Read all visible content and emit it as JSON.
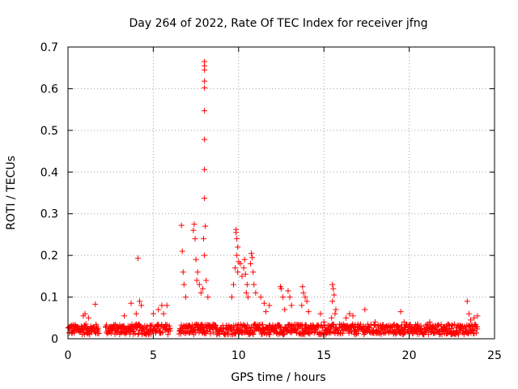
{
  "chart_data": {
    "type": "scatter",
    "title": "Day 264 of 2022, Rate Of TEC Index for receiver jfng",
    "xlabel": "GPS time / hours",
    "ylabel": "ROTI / TECUs",
    "xlim": [
      0,
      25
    ],
    "ylim": [
      0,
      0.7
    ],
    "xticks": [
      0,
      5,
      10,
      15,
      20,
      25
    ],
    "yticks": [
      0,
      0.1,
      0.2,
      0.3,
      0.4,
      0.5,
      0.6,
      0.7
    ],
    "xtick_labels": [
      "0",
      "5",
      "10",
      "15",
      "20",
      "25"
    ],
    "ytick_labels": [
      "0",
      "0.1",
      "0.2",
      "0.3",
      "0.4",
      "0.5",
      "0.6",
      "0.7"
    ],
    "grid": true,
    "marker": "+",
    "color": "#ff0000",
    "points": [
      [
        8.0,
        0.665
      ],
      [
        8.0,
        0.655
      ],
      [
        8.0,
        0.645
      ],
      [
        8.0,
        0.618
      ],
      [
        8.0,
        0.602
      ],
      [
        8.0,
        0.547
      ],
      [
        8.0,
        0.478
      ],
      [
        8.0,
        0.406
      ],
      [
        8.0,
        0.337
      ],
      [
        8.05,
        0.27
      ],
      [
        8.0,
        0.2
      ],
      [
        7.95,
        0.24
      ],
      [
        8.1,
        0.14
      ],
      [
        7.9,
        0.12
      ],
      [
        8.2,
        0.1
      ],
      [
        6.65,
        0.272
      ],
      [
        6.7,
        0.21
      ],
      [
        6.8,
        0.13
      ],
      [
        6.9,
        0.1
      ],
      [
        6.75,
        0.16
      ],
      [
        7.4,
        0.275
      ],
      [
        7.35,
        0.26
      ],
      [
        7.45,
        0.24
      ],
      [
        7.5,
        0.19
      ],
      [
        7.6,
        0.16
      ],
      [
        7.55,
        0.14
      ],
      [
        7.7,
        0.13
      ],
      [
        7.8,
        0.11
      ],
      [
        4.1,
        0.193
      ],
      [
        4.2,
        0.09
      ],
      [
        4.3,
        0.08
      ],
      [
        3.7,
        0.085
      ],
      [
        3.3,
        0.055
      ],
      [
        4.0,
        0.06
      ],
      [
        1.6,
        0.083
      ],
      [
        1.0,
        0.06
      ],
      [
        0.9,
        0.055
      ],
      [
        1.2,
        0.05
      ],
      [
        5.0,
        0.06
      ],
      [
        5.3,
        0.07
      ],
      [
        5.5,
        0.08
      ],
      [
        5.8,
        0.08
      ],
      [
        5.6,
        0.06
      ],
      [
        9.85,
        0.262
      ],
      [
        9.85,
        0.255
      ],
      [
        9.9,
        0.24
      ],
      [
        9.95,
        0.22
      ],
      [
        9.9,
        0.2
      ],
      [
        10.0,
        0.185
      ],
      [
        9.8,
        0.17
      ],
      [
        9.95,
        0.16
      ],
      [
        10.1,
        0.18
      ],
      [
        10.2,
        0.15
      ],
      [
        9.7,
        0.13
      ],
      [
        9.6,
        0.1
      ],
      [
        10.35,
        0.19
      ],
      [
        10.3,
        0.17
      ],
      [
        10.4,
        0.155
      ],
      [
        10.5,
        0.13
      ],
      [
        10.45,
        0.11
      ],
      [
        10.55,
        0.1
      ],
      [
        10.75,
        0.205
      ],
      [
        10.8,
        0.195
      ],
      [
        10.7,
        0.18
      ],
      [
        10.85,
        0.16
      ],
      [
        10.9,
        0.13
      ],
      [
        11.0,
        0.11
      ],
      [
        11.3,
        0.1
      ],
      [
        11.5,
        0.085
      ],
      [
        11.8,
        0.08
      ],
      [
        11.6,
        0.065
      ],
      [
        12.45,
        0.125
      ],
      [
        12.5,
        0.12
      ],
      [
        12.6,
        0.1
      ],
      [
        12.9,
        0.115
      ],
      [
        13.0,
        0.1
      ],
      [
        13.1,
        0.08
      ],
      [
        12.7,
        0.07
      ],
      [
        13.75,
        0.125
      ],
      [
        13.8,
        0.11
      ],
      [
        13.9,
        0.1
      ],
      [
        14.0,
        0.09
      ],
      [
        13.7,
        0.08
      ],
      [
        14.1,
        0.065
      ],
      [
        14.8,
        0.06
      ],
      [
        15.0,
        0.04
      ],
      [
        15.5,
        0.13
      ],
      [
        15.55,
        0.12
      ],
      [
        15.6,
        0.105
      ],
      [
        15.5,
        0.09
      ],
      [
        15.7,
        0.07
      ],
      [
        15.65,
        0.06
      ],
      [
        15.45,
        0.05
      ],
      [
        16.5,
        0.06
      ],
      [
        16.7,
        0.055
      ],
      [
        16.3,
        0.05
      ],
      [
        17.4,
        0.07
      ],
      [
        18.0,
        0.04
      ],
      [
        19.5,
        0.065
      ],
      [
        19.7,
        0.04
      ],
      [
        20.5,
        0.035
      ],
      [
        21.2,
        0.04
      ],
      [
        23.4,
        0.09
      ],
      [
        23.5,
        0.06
      ],
      [
        23.6,
        0.045
      ],
      [
        23.8,
        0.05
      ],
      [
        24.0,
        0.055
      ]
    ],
    "dense_band": {
      "note_segments": [
        [
          0.0,
          1.8
        ],
        [
          2.2,
          6.0
        ],
        [
          6.5,
          24.0
        ]
      ],
      "floor": 0.01,
      "ceiling": 0.035
    }
  }
}
